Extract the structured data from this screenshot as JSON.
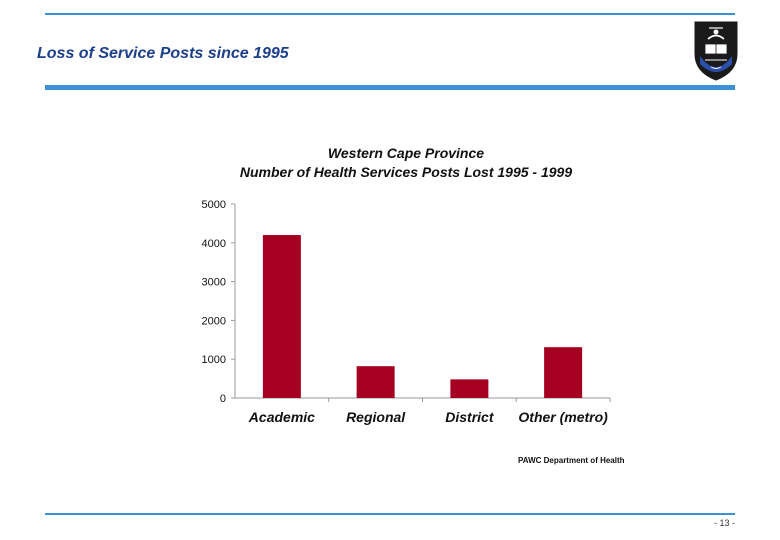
{
  "header": {
    "title": "Loss of Service Posts since 1995"
  },
  "colors": {
    "accent": "#3d8fd6",
    "title": "#1c3f8c",
    "bar": "#a50021"
  },
  "logo": {
    "icon": "university-crest-icon"
  },
  "chart_data": {
    "type": "bar",
    "title_line1": "Western Cape Province",
    "title_line2": "Number of Health Services Posts Lost 1995 - 1999",
    "categories": [
      "Academic",
      "Regional",
      "District",
      "Other (metro)"
    ],
    "values": [
      4200,
      820,
      480,
      1310
    ],
    "yticks": [
      "0",
      "1000",
      "2000",
      "3000",
      "4000",
      "5000"
    ],
    "ylim": [
      0,
      5000
    ],
    "xlabel": "",
    "ylabel": "",
    "legend": "none",
    "grid": false
  },
  "footer": {
    "source": "PAWC Department of Health",
    "page_number": "- 13 -"
  }
}
